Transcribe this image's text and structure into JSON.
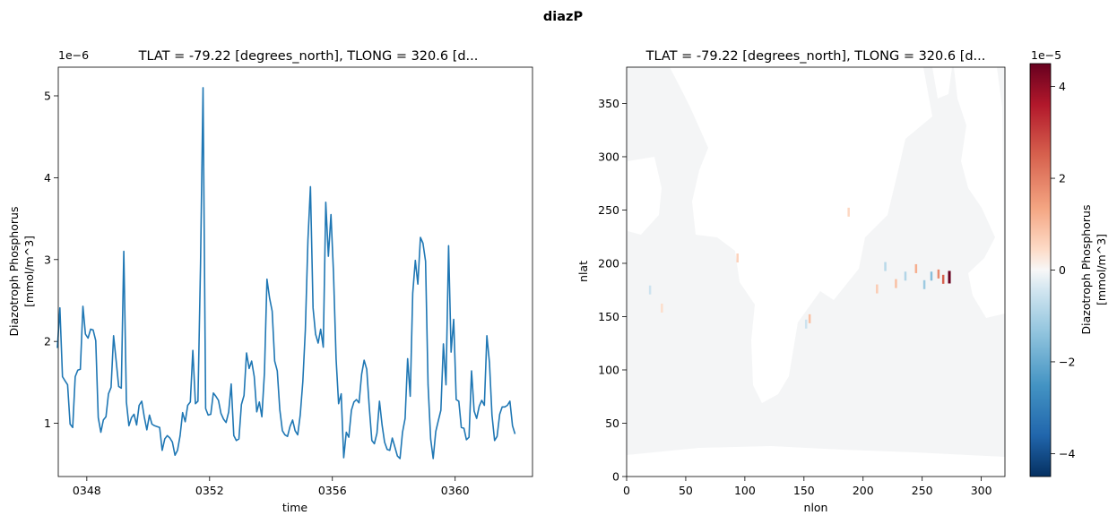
{
  "figure": {
    "suptitle": "diazP"
  },
  "colors": {
    "line": "#1f77b4",
    "land": "#ffffff",
    "ocean": "#f4f5f6",
    "cmap_neg": "#053061",
    "cmap_mid": "#f7f7f7",
    "cmap_pos": "#67001f"
  },
  "chart_data": [
    {
      "type": "line",
      "title": "TLAT = -79.22 [degrees_north], TLONG = 320.6 [d...",
      "xlabel": "time",
      "ylabel": "Diazotroph Phosphorus",
      "ylabel_units": "[mmol/m^3]",
      "y_offset_label": "1e−6",
      "xlim": [
        347.07,
        362.52
      ],
      "ylim": [
        0.35,
        5.35
      ],
      "xticks": [
        348,
        352,
        356,
        360
      ],
      "xtick_labels": [
        "0348",
        "0352",
        "0356",
        "0360"
      ],
      "yticks": [
        1,
        2,
        3,
        4,
        5
      ],
      "ytick_labels": [
        "1",
        "2",
        "3",
        "4",
        "5"
      ],
      "series": [
        {
          "name": "diazP",
          "x_start": 347.04,
          "x_step": 0.0833,
          "values": [
            1.92,
            2.41,
            1.57,
            1.52,
            1.47,
            0.99,
            0.95,
            1.57,
            1.65,
            1.66,
            2.43,
            2.09,
            2.04,
            2.15,
            2.14,
            2.01,
            1.07,
            0.89,
            1.04,
            1.08,
            1.36,
            1.44,
            2.07,
            1.76,
            1.45,
            1.43,
            3.1,
            1.26,
            0.97,
            1.07,
            1.11,
            0.98,
            1.22,
            1.27,
            1.08,
            0.92,
            1.1,
            0.99,
            0.97,
            0.96,
            0.95,
            0.67,
            0.81,
            0.85,
            0.82,
            0.77,
            0.61,
            0.67,
            0.85,
            1.13,
            1.02,
            1.22,
            1.26,
            1.89,
            1.24,
            1.27,
            2.95,
            5.1,
            1.18,
            1.1,
            1.11,
            1.37,
            1.33,
            1.28,
            1.12,
            1.05,
            1.01,
            1.14,
            1.48,
            0.85,
            0.79,
            0.81,
            1.23,
            1.34,
            1.86,
            1.67,
            1.76,
            1.57,
            1.14,
            1.26,
            1.08,
            1.62,
            2.76,
            2.53,
            2.37,
            1.76,
            1.64,
            1.17,
            0.91,
            0.86,
            0.84,
            0.96,
            1.04,
            0.91,
            0.86,
            1.1,
            1.51,
            2.14,
            3.24,
            3.89,
            2.41,
            2.09,
            1.98,
            2.15,
            1.93,
            3.7,
            3.04,
            3.55,
            2.84,
            1.79,
            1.24,
            1.36,
            0.58,
            0.89,
            0.83,
            1.16,
            1.26,
            1.29,
            1.25,
            1.6,
            1.77,
            1.66,
            1.2,
            0.79,
            0.75,
            0.88,
            1.27,
            0.98,
            0.77,
            0.68,
            0.67,
            0.82,
            0.71,
            0.6,
            0.57,
            0.89,
            1.06,
            1.79,
            1.33,
            2.59,
            2.99,
            2.7,
            3.27,
            3.2,
            2.98,
            1.47,
            0.81,
            0.57,
            0.9,
            1.03,
            1.16,
            1.97,
            1.47,
            3.17,
            1.87,
            2.27,
            1.29,
            1.27,
            0.95,
            0.94,
            0.8,
            0.83,
            1.64,
            1.15,
            1.06,
            1.21,
            1.28,
            1.22,
            2.07,
            1.74,
            1.1,
            0.79,
            0.84,
            1.11,
            1.2,
            1.2,
            1.22,
            1.27,
            0.97,
            0.87
          ]
        }
      ]
    },
    {
      "type": "heatmap",
      "title": "TLAT = -79.22 [degrees_north], TLONG = 320.6 [d...",
      "xlabel": "nlon",
      "ylabel": "nlat",
      "xlim": [
        0,
        320
      ],
      "ylim": [
        0,
        384
      ],
      "xticks": [
        0,
        50,
        100,
        150,
        200,
        250,
        300
      ],
      "yticks": [
        0,
        50,
        100,
        150,
        200,
        250,
        300,
        350
      ],
      "colorbar": {
        "label": "Diazotroph Phosphorus",
        "units": "[mmol/m^3]",
        "offset_label": "1e−5",
        "vmin": -4.5,
        "vmax": 4.5,
        "ticks": [
          -4,
          -2,
          0,
          2,
          4
        ],
        "tick_labels": [
          "−4",
          "−2",
          "0",
          "2",
          "4"
        ],
        "cmap": "RdBu_r"
      },
      "features": [
        {
          "nlon": 273,
          "nlat": 187,
          "value": 4.5
        },
        {
          "nlon": 268,
          "nlat": 185,
          "value": 2.5
        },
        {
          "nlon": 264,
          "nlat": 190,
          "value": 1.8
        },
        {
          "nlon": 258,
          "nlat": 188,
          "value": -1.5
        },
        {
          "nlon": 252,
          "nlat": 180,
          "value": -1.2
        },
        {
          "nlon": 245,
          "nlat": 195,
          "value": 1.2
        },
        {
          "nlon": 236,
          "nlat": 188,
          "value": -0.9
        },
        {
          "nlon": 228,
          "nlat": 181,
          "value": 0.9
        },
        {
          "nlon": 219,
          "nlat": 197,
          "value": -0.8
        },
        {
          "nlon": 212,
          "nlat": 176,
          "value": 0.7
        },
        {
          "nlon": 155,
          "nlat": 148,
          "value": 0.9
        },
        {
          "nlon": 152,
          "nlat": 143,
          "value": -0.5
        },
        {
          "nlon": 94,
          "nlat": 205,
          "value": 0.6
        },
        {
          "nlon": 188,
          "nlat": 248,
          "value": 0.5
        },
        {
          "nlon": 20,
          "nlat": 175,
          "value": -0.5
        },
        {
          "nlon": 30,
          "nlat": 158,
          "value": 0.4
        }
      ]
    }
  ]
}
